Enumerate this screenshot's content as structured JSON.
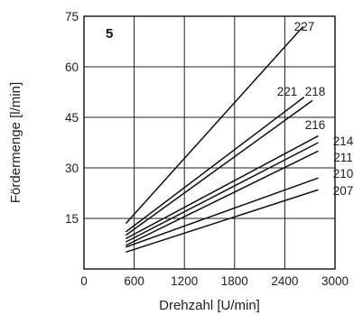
{
  "chart_data": {
    "type": "line",
    "panel_label": "5",
    "xlabel": "Drehzahl [U/min]",
    "ylabel": "Fördermenge [l/min]",
    "xlim": [
      0,
      3000
    ],
    "ylim": [
      0,
      75
    ],
    "x_ticks": [
      "0",
      "600",
      "1200",
      "1800",
      "2400",
      "3000"
    ],
    "y_ticks": [
      "15",
      "30",
      "45",
      "60",
      "75"
    ],
    "grid": true,
    "series": [
      {
        "name": "227",
        "x": [
          500,
          2620
        ],
        "y": [
          13.5,
          72.0
        ]
      },
      {
        "name": "221",
        "x": [
          500,
          2630
        ],
        "y": [
          11.0,
          51.0
        ]
      },
      {
        "name": "218",
        "x": [
          500,
          2730
        ],
        "y": [
          10.0,
          50.0
        ]
      },
      {
        "name": "216",
        "x": [
          500,
          2800
        ],
        "y": [
          9.0,
          39.5
        ]
      },
      {
        "name": "214",
        "x": [
          500,
          2800
        ],
        "y": [
          8.0,
          37.5
        ]
      },
      {
        "name": "211",
        "x": [
          500,
          2800
        ],
        "y": [
          7.0,
          35.0
        ]
      },
      {
        "name": "210",
        "x": [
          500,
          2800
        ],
        "y": [
          6.5,
          27.0
        ]
      },
      {
        "name": "207",
        "x": [
          500,
          2800
        ],
        "y": [
          5.0,
          23.5
        ]
      }
    ]
  }
}
